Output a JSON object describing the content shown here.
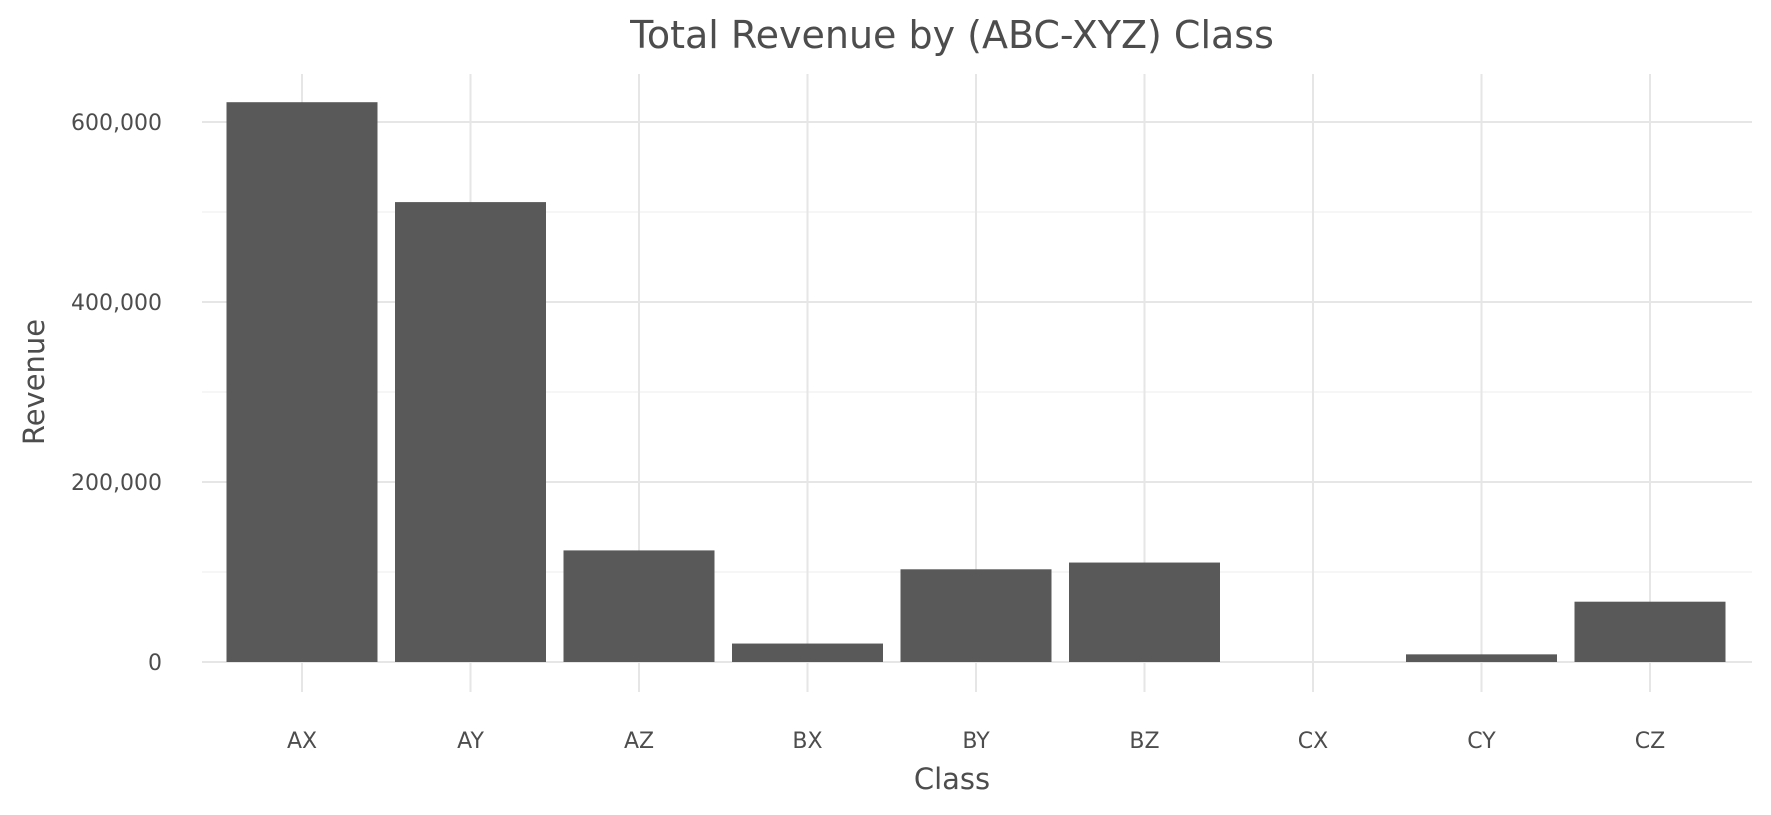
{
  "chart_data": {
    "type": "bar",
    "title": "Total Revenue by (ABC-XYZ) Class",
    "xlabel": "Class",
    "ylabel": "Revenue",
    "categories": [
      "AX",
      "AY",
      "AZ",
      "BX",
      "BY",
      "BZ",
      "CX",
      "CY",
      "CZ"
    ],
    "values": [
      622000,
      511000,
      124000,
      20500,
      103000,
      110500,
      0,
      8500,
      67000
    ],
    "ylim": [
      0,
      650000
    ],
    "yticks": [
      0,
      200000,
      400000,
      600000
    ],
    "ytick_labels": [
      "0",
      "200,000",
      "400,000",
      "600,000"
    ],
    "grid": true,
    "legend": "none",
    "colors": {
      "bar": "#595959",
      "grid_major": "#e6e6e6",
      "grid_minor": "#f3f3f3",
      "text": "#4d4d4d",
      "background": "#ffffff"
    }
  }
}
